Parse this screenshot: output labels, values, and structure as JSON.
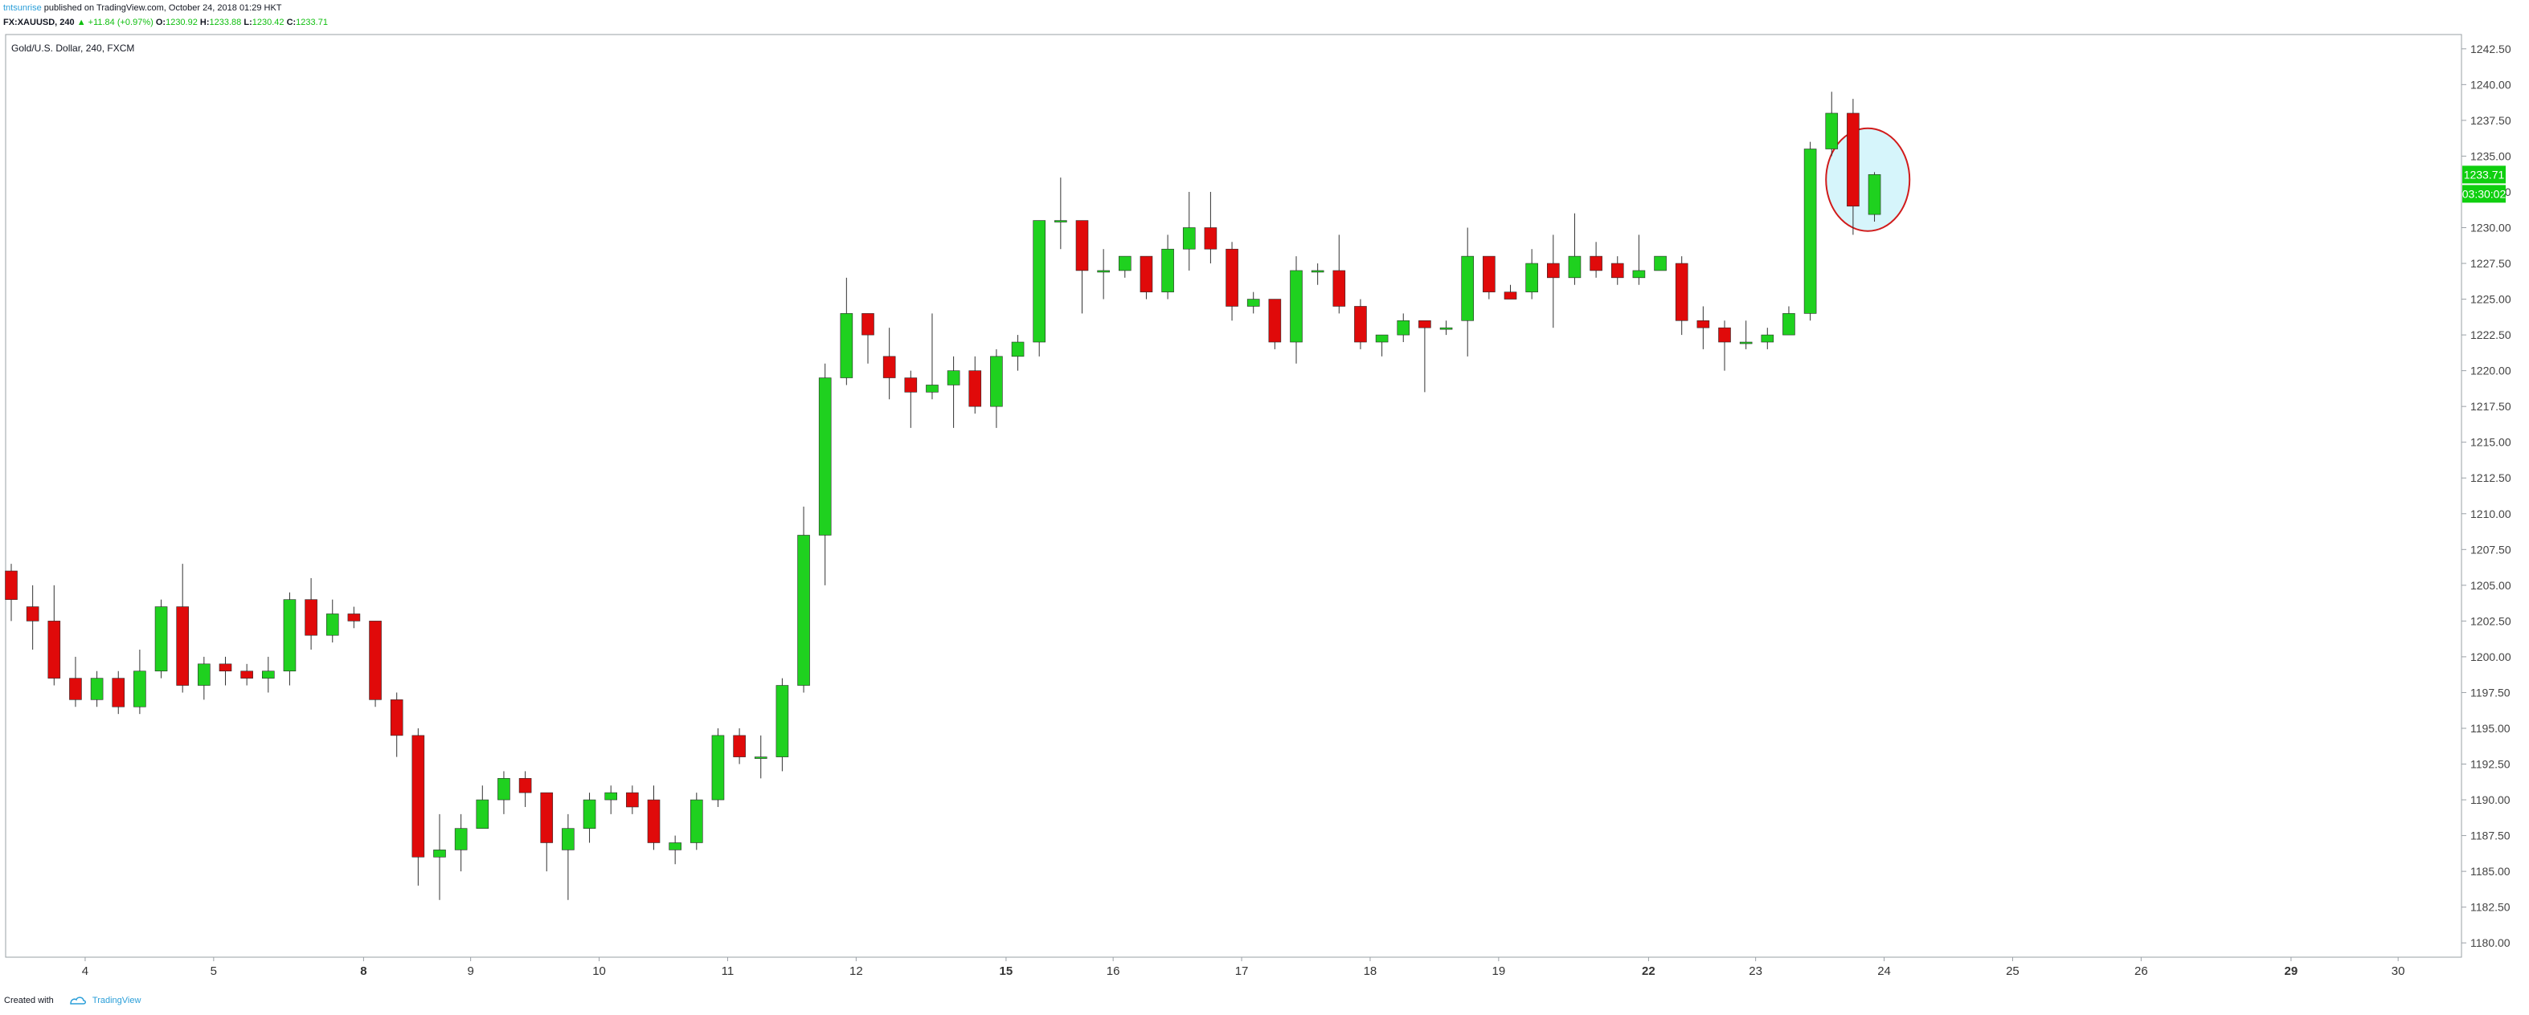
{
  "header": {
    "author": "tntsunrise",
    "published": "published on TradingView.com, October 24, 2018 01:29 HKT",
    "symbol": "FX:XAUUSD, 240",
    "change": "▲ +11.84 (+0.97%)",
    "o_label": "O:",
    "o_value": "1230.92",
    "h_label": "H:",
    "h_value": "1233.88",
    "l_label": "L:",
    "l_value": "1230.42",
    "c_label": "C:",
    "c_value": "1233.71"
  },
  "legend": {
    "title": "Gold/U.S. Dollar, 240, FXCM"
  },
  "footer": {
    "created_with": "Created with",
    "brand": "TradingView"
  },
  "colors": {
    "up": "#1fd11f",
    "down": "#e00a0a",
    "wick": "#333333",
    "highlight_fill": "#d6f5fb",
    "highlight_stroke": "#d11b1b"
  },
  "chart_data": {
    "type": "candlestick",
    "title": "Gold/U.S. Dollar, 240, FXCM",
    "ylim": [
      1179.0,
      1243.5
    ],
    "y_ticks": [
      "1242.50",
      "1240.00",
      "1237.50",
      "1235.00",
      "1232.50",
      "1230.00",
      "1227.50",
      "1225.00",
      "1222.50",
      "1220.00",
      "1217.50",
      "1215.00",
      "1212.50",
      "1210.00",
      "1207.50",
      "1205.00",
      "1202.50",
      "1200.00",
      "1197.50",
      "1195.00",
      "1192.50",
      "1190.00",
      "1187.50",
      "1185.00",
      "1182.50",
      "1180.00"
    ],
    "x_labels": [
      {
        "label": "4",
        "bold": false,
        "index": 3
      },
      {
        "label": "5",
        "bold": false,
        "index": 9
      },
      {
        "label": "8",
        "bold": true,
        "index": 16
      },
      {
        "label": "9",
        "bold": false,
        "index": 21
      },
      {
        "label": "10",
        "bold": false,
        "index": 27
      },
      {
        "label": "11",
        "bold": false,
        "index": 33
      },
      {
        "label": "12",
        "bold": false,
        "index": 39
      },
      {
        "label": "15",
        "bold": true,
        "index": 46
      },
      {
        "label": "16",
        "bold": false,
        "index": 51
      },
      {
        "label": "17",
        "bold": false,
        "index": 57
      },
      {
        "label": "18",
        "bold": false,
        "index": 63
      },
      {
        "label": "19",
        "bold": false,
        "index": 69
      },
      {
        "label": "22",
        "bold": true,
        "index": 76
      },
      {
        "label": "23",
        "bold": false,
        "index": 81
      },
      {
        "label": "24",
        "bold": false,
        "index": 87
      },
      {
        "label": "25",
        "bold": false,
        "index": 93
      },
      {
        "label": "26",
        "bold": false,
        "index": 99
      },
      {
        "label": "29",
        "bold": true,
        "index": 106
      },
      {
        "label": "30",
        "bold": false,
        "index": 111
      }
    ],
    "candles": [
      [
        1206.0,
        1206.5,
        1202.5,
        1204.0
      ],
      [
        1203.5,
        1205.0,
        1200.5,
        1202.5
      ],
      [
        1202.5,
        1205.0,
        1198.0,
        1198.5
      ],
      [
        1198.5,
        1200.0,
        1196.5,
        1197.0
      ],
      [
        1197.0,
        1199.0,
        1196.5,
        1198.5
      ],
      [
        1198.5,
        1199.0,
        1196.0,
        1196.5
      ],
      [
        1196.5,
        1200.5,
        1196.0,
        1199.0
      ],
      [
        1199.0,
        1204.0,
        1198.5,
        1203.5
      ],
      [
        1203.5,
        1206.5,
        1197.5,
        1198.0
      ],
      [
        1198.0,
        1200.0,
        1197.0,
        1199.5
      ],
      [
        1199.5,
        1200.0,
        1198.0,
        1199.0
      ],
      [
        1199.0,
        1199.5,
        1198.0,
        1198.5
      ],
      [
        1198.5,
        1200.0,
        1197.5,
        1199.0
      ],
      [
        1199.0,
        1204.5,
        1198.0,
        1204.0
      ],
      [
        1204.0,
        1205.5,
        1200.5,
        1201.5
      ],
      [
        1201.5,
        1204.0,
        1201.0,
        1203.0
      ],
      [
        1203.0,
        1203.5,
        1202.0,
        1202.5
      ],
      [
        1202.5,
        1202.5,
        1196.5,
        1197.0
      ],
      [
        1197.0,
        1197.5,
        1193.0,
        1194.5
      ],
      [
        1194.5,
        1195.0,
        1184.0,
        1186.0
      ],
      [
        1186.0,
        1189.0,
        1183.0,
        1186.5
      ],
      [
        1186.5,
        1189.0,
        1185.0,
        1188.0
      ],
      [
        1188.0,
        1191.0,
        1188.0,
        1190.0
      ],
      [
        1190.0,
        1192.0,
        1189.0,
        1191.5
      ],
      [
        1191.5,
        1192.0,
        1189.5,
        1190.5
      ],
      [
        1190.5,
        1190.5,
        1185.0,
        1187.0
      ],
      [
        1186.5,
        1189.0,
        1183.0,
        1188.0
      ],
      [
        1188.0,
        1190.5,
        1187.0,
        1190.0
      ],
      [
        1190.0,
        1191.0,
        1189.0,
        1190.5
      ],
      [
        1190.5,
        1191.0,
        1189.0,
        1189.5
      ],
      [
        1190.0,
        1191.0,
        1186.5,
        1187.0
      ],
      [
        1186.5,
        1187.5,
        1185.5,
        1187.0
      ],
      [
        1187.0,
        1190.5,
        1186.5,
        1190.0
      ],
      [
        1190.0,
        1195.0,
        1189.5,
        1194.5
      ],
      [
        1194.5,
        1195.0,
        1192.5,
        1193.0
      ],
      [
        1193.0,
        1194.5,
        1191.5,
        1193.0
      ],
      [
        1193.0,
        1198.5,
        1192.0,
        1198.0
      ],
      [
        1198.0,
        1210.5,
        1197.5,
        1208.5
      ],
      [
        1208.5,
        1220.5,
        1205.0,
        1219.5
      ],
      [
        1219.5,
        1226.5,
        1219.0,
        1224.0
      ],
      [
        1224.0,
        1224.0,
        1220.5,
        1222.5
      ],
      [
        1221.0,
        1223.0,
        1218.0,
        1219.5
      ],
      [
        1219.5,
        1220.0,
        1216.0,
        1218.5
      ],
      [
        1218.5,
        1224.0,
        1218.0,
        1219.0
      ],
      [
        1219.0,
        1221.0,
        1216.0,
        1220.0
      ],
      [
        1220.0,
        1221.0,
        1217.0,
        1217.5
      ],
      [
        1217.5,
        1221.5,
        1216.0,
        1221.0
      ],
      [
        1221.0,
        1222.5,
        1220.0,
        1222.0
      ],
      [
        1222.0,
        1230.5,
        1221.0,
        1230.5
      ],
      [
        1230.5,
        1233.5,
        1228.5,
        1230.5
      ],
      [
        1230.5,
        1230.5,
        1224.0,
        1227.0
      ],
      [
        1227.0,
        1228.5,
        1225.0,
        1227.0
      ],
      [
        1227.0,
        1228.0,
        1226.5,
        1228.0
      ],
      [
        1228.0,
        1228.0,
        1225.0,
        1225.5
      ],
      [
        1225.5,
        1229.5,
        1225.0,
        1228.5
      ],
      [
        1228.5,
        1232.5,
        1227.0,
        1230.0
      ],
      [
        1230.0,
        1232.5,
        1227.5,
        1228.5
      ],
      [
        1228.5,
        1229.0,
        1223.5,
        1224.5
      ],
      [
        1224.5,
        1225.5,
        1224.0,
        1225.0
      ],
      [
        1225.0,
        1225.0,
        1221.5,
        1222.0
      ],
      [
        1222.0,
        1228.0,
        1220.5,
        1227.0
      ],
      [
        1227.0,
        1227.5,
        1226.0,
        1227.0
      ],
      [
        1227.0,
        1229.5,
        1224.0,
        1224.5
      ],
      [
        1224.5,
        1225.0,
        1221.5,
        1222.0
      ],
      [
        1222.0,
        1222.5,
        1221.0,
        1222.5
      ],
      [
        1222.5,
        1224.0,
        1222.0,
        1223.5
      ],
      [
        1223.5,
        1223.5,
        1218.5,
        1223.0
      ],
      [
        1223.0,
        1223.5,
        1222.5,
        1223.0
      ],
      [
        1223.5,
        1230.0,
        1221.0,
        1228.0
      ],
      [
        1228.0,
        1228.0,
        1225.0,
        1225.5
      ],
      [
        1225.5,
        1226.0,
        1225.0,
        1225.0
      ],
      [
        1225.5,
        1228.5,
        1225.0,
        1227.5
      ],
      [
        1227.5,
        1229.5,
        1223.0,
        1226.5
      ],
      [
        1226.5,
        1231.0,
        1226.0,
        1228.0
      ],
      [
        1228.0,
        1229.0,
        1226.5,
        1227.0
      ],
      [
        1227.5,
        1228.0,
        1226.0,
        1226.5
      ],
      [
        1226.5,
        1229.5,
        1226.0,
        1227.0
      ],
      [
        1227.0,
        1228.0,
        1227.0,
        1228.0
      ],
      [
        1227.5,
        1228.0,
        1222.5,
        1223.5
      ],
      [
        1223.5,
        1224.5,
        1221.5,
        1223.0
      ],
      [
        1223.0,
        1223.5,
        1220.0,
        1222.0
      ],
      [
        1222.0,
        1223.5,
        1221.5,
        1222.0
      ],
      [
        1222.0,
        1223.0,
        1221.5,
        1222.5
      ],
      [
        1222.5,
        1224.5,
        1222.5,
        1224.0
      ],
      [
        1224.0,
        1236.0,
        1223.5,
        1235.5
      ],
      [
        1235.5,
        1239.5,
        1235.0,
        1238.0
      ],
      [
        1238.0,
        1239.0,
        1229.5,
        1231.5
      ],
      [
        1230.92,
        1233.88,
        1230.42,
        1233.71
      ]
    ],
    "last_price": "1233.71",
    "countdown": "03:30:02",
    "highlight": {
      "from_index": 86,
      "to_index": 87
    }
  }
}
